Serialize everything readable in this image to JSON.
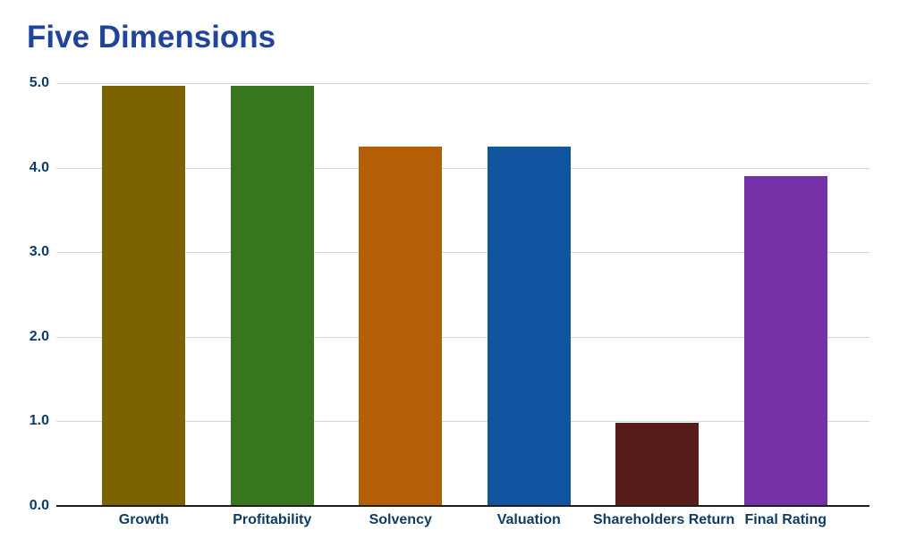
{
  "chart_data": {
    "type": "bar",
    "title": "Five Dimensions",
    "categories": [
      "Growth",
      "Profitability",
      "Solvency",
      "Valuation",
      "Shareholders Return",
      "Final Rating"
    ],
    "values": [
      4.97,
      4.97,
      4.25,
      4.25,
      0.98,
      3.9
    ],
    "bar_colors": [
      "#7D6200",
      "#38761D",
      "#B45F06",
      "#1154A0",
      "#571C17",
      "#7431A8"
    ],
    "ylim": [
      0,
      5
    ],
    "ytick_labels": [
      "5.0",
      "4.0",
      "3.0",
      "2.0",
      "1.0",
      "0.0"
    ],
    "xlabel": "",
    "ylabel": "",
    "grid": "horizontal",
    "legend": "none"
  },
  "colors": {
    "background": "#FFFFFF",
    "title": "#1F4499",
    "axis_labels": "#0F3C64",
    "gridline": "#D5D5D5",
    "axis_line": "#1F1F1F"
  }
}
